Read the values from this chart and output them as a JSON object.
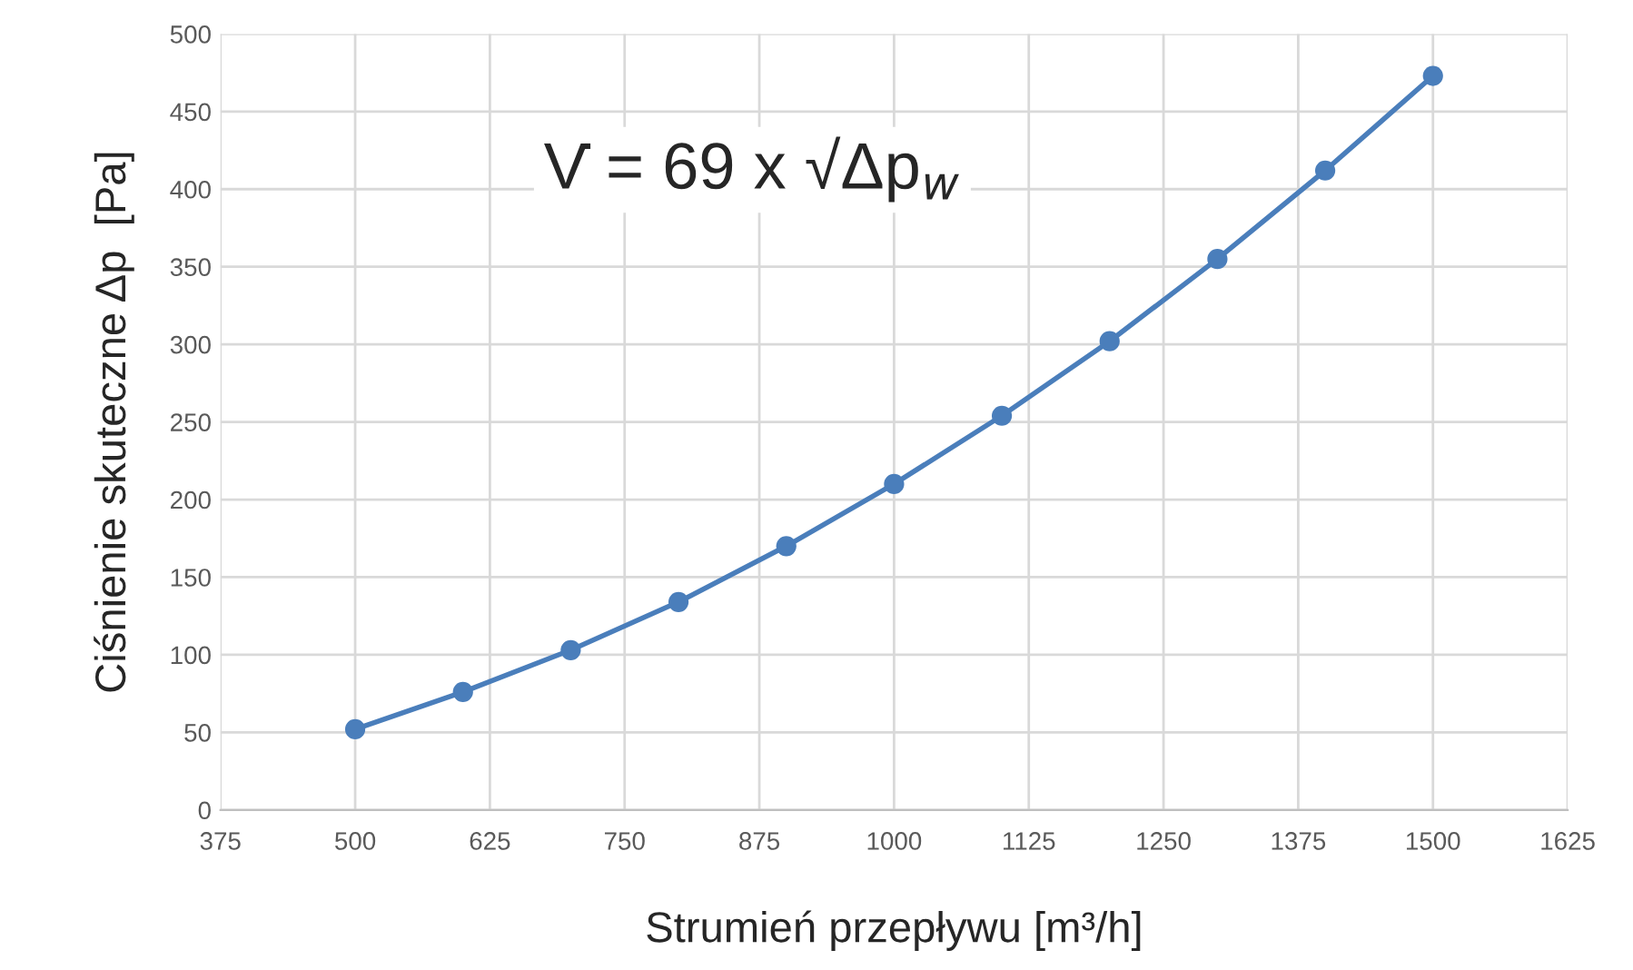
{
  "chart_data": {
    "type": "line",
    "xlabel": "Strumień przepływu [m³/h]",
    "ylabel": "Ciśnienie skuteczne Δp  [Pa]",
    "x": [
      500,
      600,
      700,
      800,
      900,
      1000,
      1100,
      1200,
      1300,
      1400,
      1500
    ],
    "series": [
      {
        "color": "#4a7ebb",
        "values": [
          52,
          76,
          103,
          134,
          170,
          210,
          254,
          302,
          355,
          412,
          473
        ]
      }
    ],
    "xlim": [
      375,
      1625
    ],
    "xticks": [
      375,
      500,
      625,
      750,
      875,
      1000,
      1125,
      1250,
      1375,
      1500,
      1625
    ],
    "ylim": [
      0,
      500
    ],
    "yticks": [
      0,
      50,
      100,
      150,
      200,
      250,
      300,
      350,
      400,
      450,
      500
    ],
    "grid": true,
    "marker": "circle",
    "line_style": "solid",
    "annotations": [
      "V̇ = 69 x √Δp$_{w}$"
    ]
  }
}
